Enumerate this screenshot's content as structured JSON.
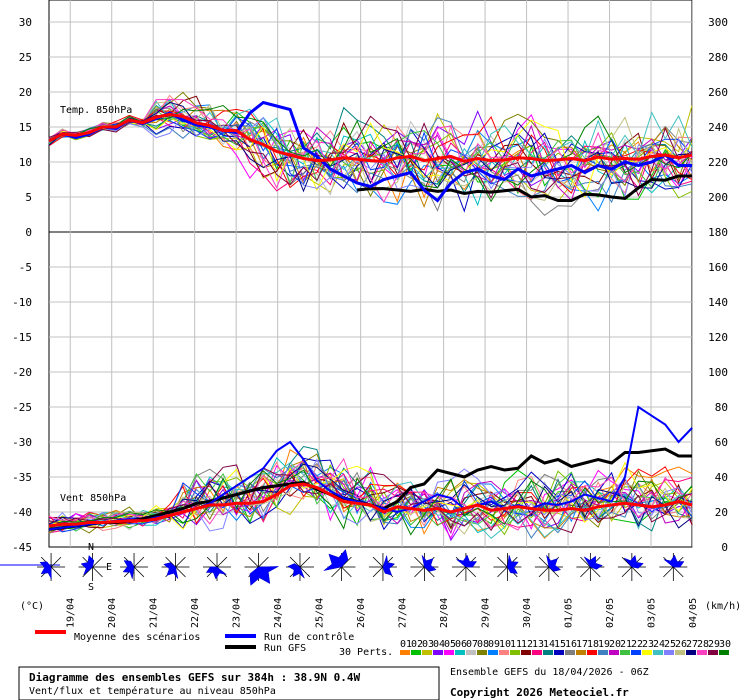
{
  "chart_data": {
    "type": "line",
    "top_panel": {
      "label": "Temp. 850hPa",
      "ylim": [
        0,
        30
      ],
      "left_ticks": [
        "30",
        "25",
        "20",
        "15",
        "10",
        "5",
        "0"
      ],
      "right_ticks": [
        "300",
        "280",
        "260",
        "240",
        "220",
        "200",
        "180"
      ],
      "mean_series": {
        "name": "Moyenne des scénarios",
        "values": [
          13,
          14,
          13.8,
          14.2,
          15,
          15,
          16,
          15.6,
          16.4,
          16.8,
          16.5,
          15.6,
          15.2,
          14.5,
          14.5,
          13.2,
          12.5,
          11.5,
          11,
          10.5,
          10.2,
          10.3,
          10.6,
          10.4,
          10.2,
          10.1,
          10.6,
          10.8,
          10.2,
          10.5,
          10.8,
          10.1,
          10.5,
          10.2,
          10.3,
          10.6,
          10.5,
          10.2,
          10.3,
          10.5,
          10.2,
          10.7,
          10.4,
          10.5,
          10.4,
          10.8,
          11,
          10.6,
          11
        ]
      },
      "control_series": {
        "name": "Run de contrôle",
        "values": [
          13,
          14,
          13.5,
          14,
          15,
          14.8,
          16,
          15.5,
          16.2,
          17,
          16,
          15.3,
          15,
          14.5,
          14.2,
          17,
          18.5,
          18,
          17.5,
          12,
          10.8,
          9,
          8,
          7,
          6.5,
          7.5,
          8,
          8.5,
          6,
          4.5,
          7,
          8.5,
          9,
          8,
          7.5,
          9,
          8,
          8.5,
          9,
          9.5,
          8.5,
          9.5,
          9,
          10,
          9.5,
          10,
          11,
          9.5,
          9.5
        ]
      },
      "gfs_series": {
        "name": "Run GFS",
        "values": [
          null,
          null,
          null,
          null,
          null,
          null,
          null,
          null,
          null,
          null,
          null,
          null,
          null,
          null,
          null,
          null,
          null,
          null,
          null,
          null,
          null,
          null,
          null,
          6,
          6.2,
          6.2,
          6,
          5.8,
          6.1,
          5.8,
          6,
          5.5,
          5.8,
          5.7,
          5.9,
          6.1,
          5,
          5.2,
          4.5,
          4.5,
          5.4,
          5.3,
          5,
          4.8,
          6.3,
          7.5,
          7.4,
          8,
          8
        ]
      }
    },
    "bottom_panel": {
      "label": "Vent 850hPa",
      "left_ticks": [
        "0",
        "-5",
        "-10",
        "-15",
        "-20",
        "-25",
        "-30",
        "-35",
        "-40",
        "-45"
      ],
      "right_ticks": [
        "180",
        "160",
        "140",
        "120",
        "100",
        "80",
        "60",
        "40",
        "20",
        "0"
      ],
      "ylim": [
        0,
        180
      ],
      "mean_series": {
        "name": "Moyenne des scénarios",
        "values": [
          12,
          13,
          13,
          14,
          14,
          14.5,
          15,
          15,
          16,
          18,
          20,
          22,
          24,
          24,
          25,
          25,
          26,
          30,
          35,
          36,
          34,
          30,
          26,
          25,
          24,
          20,
          23,
          22,
          21,
          22,
          20,
          22,
          24,
          21,
          22,
          23,
          22,
          21,
          21,
          22,
          21,
          23,
          24,
          25,
          24,
          23,
          24,
          26,
          24
        ]
      },
      "control_series": {
        "name": "Run de contrôle",
        "values": [
          10,
          11,
          12,
          13,
          14,
          15,
          16,
          15,
          17,
          18,
          20,
          22,
          25,
          30,
          35,
          40,
          45,
          55,
          60,
          50,
          38,
          32,
          28,
          26,
          24,
          22,
          20,
          22,
          26,
          30,
          28,
          22,
          24,
          26,
          22,
          24,
          22,
          25,
          24,
          26,
          30,
          28,
          26,
          40,
          80,
          75,
          70,
          60,
          68
        ]
      },
      "gfs_series": {
        "name": "Run GFS",
        "values": [
          10,
          11,
          12,
          13,
          14,
          14,
          15,
          16,
          18,
          20,
          22,
          25,
          26,
          28,
          30,
          32,
          34,
          35,
          36,
          37,
          33,
          30,
          28,
          26,
          24,
          22,
          26,
          34,
          36,
          44,
          42,
          40,
          44,
          46,
          44,
          45,
          52,
          48,
          50,
          46,
          48,
          50,
          48,
          54,
          54,
          55,
          56,
          52,
          52
        ]
      }
    },
    "x_labels": [
      "19/04",
      "20/04",
      "21/04",
      "22/04",
      "23/04",
      "24/04",
      "25/04",
      "26/04",
      "27/04",
      "28/04",
      "29/04",
      "30/04",
      "01/05",
      "02/05",
      "03/05",
      "04/05"
    ],
    "wind_rose": {
      "letters": [
        "N",
        "S",
        "E"
      ]
    }
  },
  "axis_units": {
    "left": "(°C)",
    "right": "(km/h)"
  },
  "legend": {
    "mean": "Moyenne des scénarios",
    "control": "Run de contrôle",
    "gfs": "Run GFS",
    "perts": "30 Perts.",
    "pert_numbers": [
      "01",
      "02",
      "03",
      "04",
      "05",
      "06",
      "07",
      "08",
      "09",
      "10",
      "11",
      "12",
      "13",
      "14",
      "15",
      "16",
      "17",
      "18",
      "19",
      "20",
      "21",
      "22",
      "23",
      "24",
      "25",
      "26",
      "27",
      "28",
      "29",
      "30"
    ],
    "pert_colors": [
      "#ff8000",
      "#00c000",
      "#c0c000",
      "#8000ff",
      "#ff00ff",
      "#00c0c0",
      "#c0c0c0",
      "#808000",
      "#0080ff",
      "#ff8080",
      "#80c000",
      "#800000",
      "#ff0080",
      "#008080",
      "#0000c0",
      "#808080",
      "#c08000",
      "#ff0000",
      "#4080c0",
      "#c000c0",
      "#40c040",
      "#0040ff",
      "#ffff00",
      "#40c0c0",
      "#8080ff",
      "#c0c080",
      "#000080",
      "#ff40c0",
      "#800040",
      "#008000"
    ]
  },
  "footer": {
    "title": "Diagramme des ensembles GEFS sur 384h : 38.9N 0.4W",
    "subtitle": "Vent/flux et température au niveau 850hPa",
    "run": "Ensemble GEFS du 18/04/2026 - 06Z",
    "copyright": "Copyright 2026 Meteociel.fr"
  },
  "colors": {
    "mean": "#ff0000",
    "control": "#0000ff",
    "gfs": "#000000",
    "grid": "#c0c0c0",
    "rose": "#0000ff"
  }
}
